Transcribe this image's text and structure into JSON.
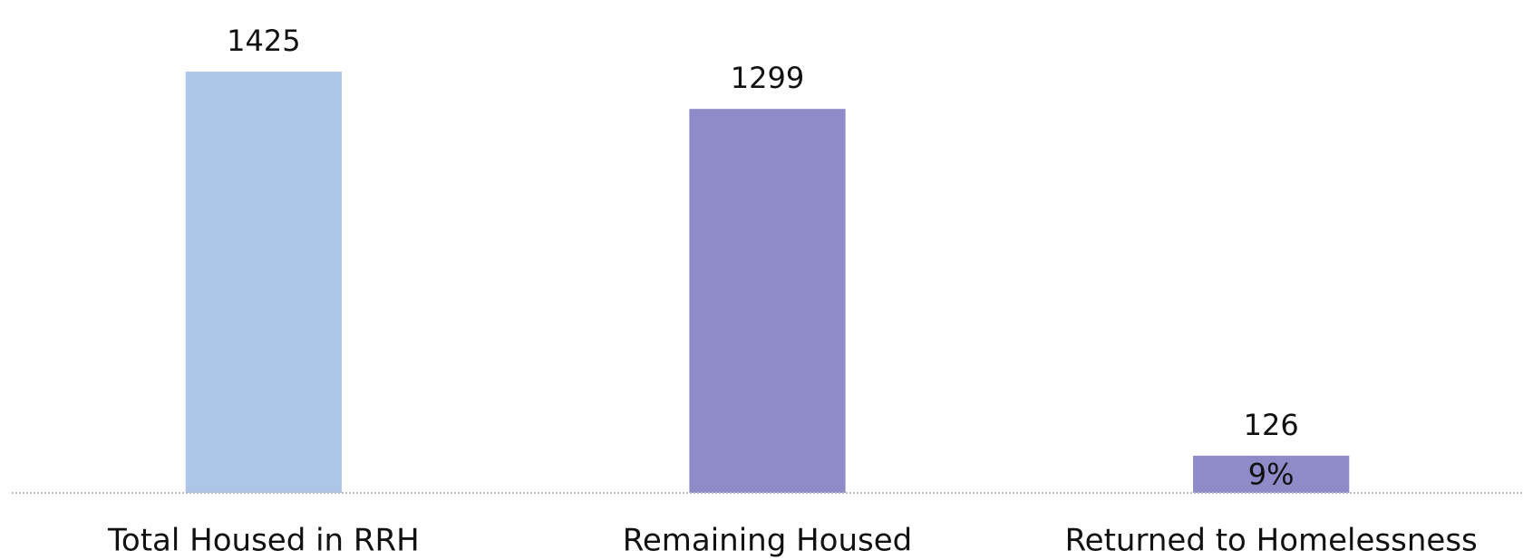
{
  "chart_data": {
    "type": "bar",
    "categories": [
      "Total Housed in RRH",
      "Remaining Housed",
      "Returned to Homelessness"
    ],
    "values": [
      1425,
      1299,
      126
    ],
    "colors": [
      "#adc5e7",
      "#8e8bc8",
      "#8e8bc8"
    ],
    "ylim": [
      0,
      1600
    ],
    "annotations": [
      {
        "text": "9%",
        "category": "Returned to Homelessness"
      }
    ]
  }
}
